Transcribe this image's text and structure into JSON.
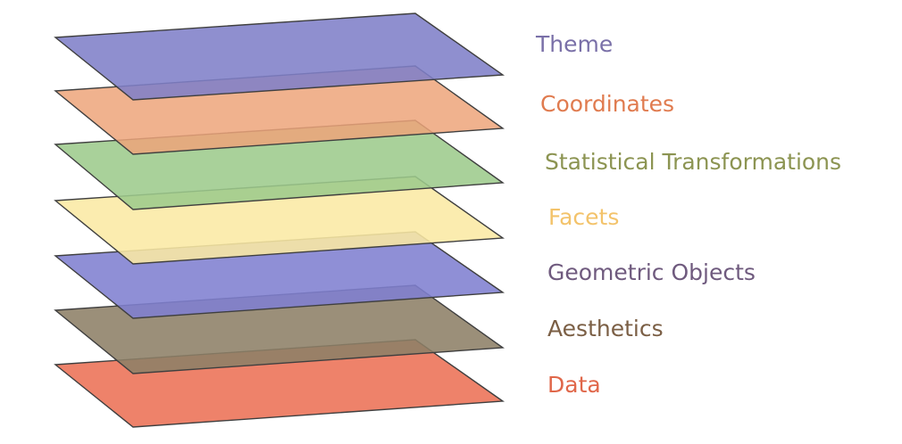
{
  "layers": [
    {
      "key": "theme",
      "label": "Theme",
      "fill": "#7f7fc8",
      "label_color": "#7a70a8"
    },
    {
      "key": "coordinates",
      "label": "Coordinates",
      "fill": "#eda47a",
      "label_color": "#e07b4f"
    },
    {
      "key": "statistical-transformations",
      "label": "Statistical Transformations",
      "fill": "#9dcb8c",
      "label_color": "#8c9452"
    },
    {
      "key": "facets",
      "label": "Facets",
      "fill": "#fbe9a4",
      "label_color": "#f3c36b"
    },
    {
      "key": "geometric-objects",
      "label": "Geometric Objects",
      "fill": "#7f7fd0",
      "label_color": "#6f5a7e"
    },
    {
      "key": "aesthetics",
      "label": "Aesthetics",
      "fill": "#8d8066",
      "label_color": "#7b5f45"
    },
    {
      "key": "data",
      "label": "Data",
      "fill": "#ed7b62",
      "label_color": "#e0674a"
    }
  ]
}
